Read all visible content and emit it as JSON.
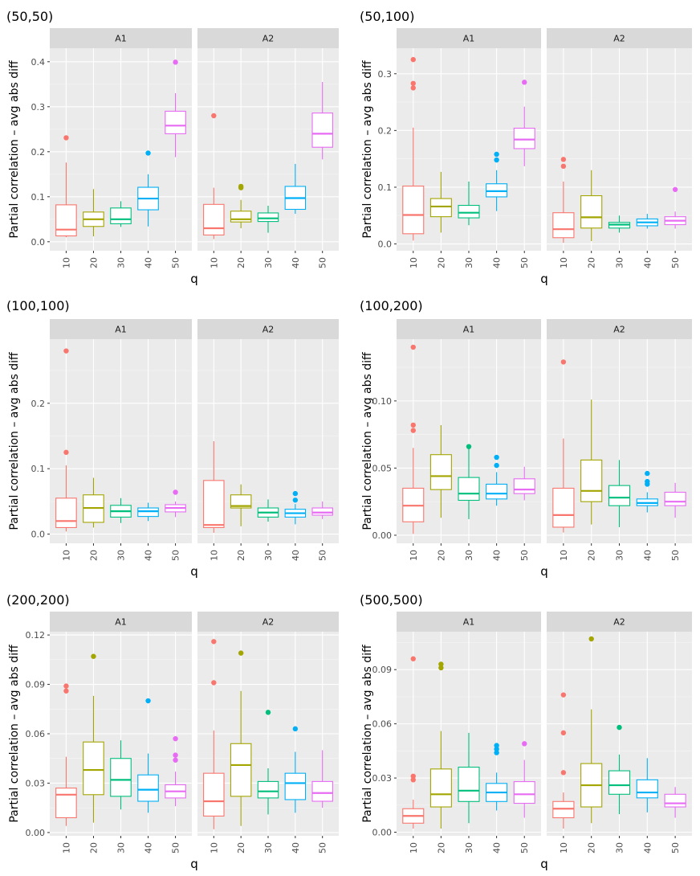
{
  "figure": {
    "ylabel": "Partial correlation – avg abs diff",
    "xlabel": "q",
    "strips": [
      "A1",
      "A2"
    ]
  },
  "colors": {
    "10": "#F8766D",
    "20": "#A3A500",
    "30": "#00BF7D",
    "40": "#00B0F6",
    "50": "#E76BF3"
  },
  "chart_data": [
    {
      "type": "boxplot",
      "title": "(50,50)",
      "xlabel": "q",
      "ylabel": "Partial correlation – avg abs diff",
      "categories": [
        "10",
        "20",
        "30",
        "40",
        "50"
      ],
      "ylim": [
        -0.02,
        0.43
      ],
      "yticks": [
        0.0,
        0.1,
        0.2,
        0.3,
        0.4
      ],
      "ytick_labels": [
        "0.0",
        "0.1",
        "0.2",
        "0.3",
        "0.4"
      ],
      "panels": [
        {
          "name": "A1",
          "boxes": [
            {
              "q": "10",
              "lw": 0.01,
              "q1": 0.013,
              "med": 0.027,
              "q3": 0.082,
              "uw": 0.176,
              "outliers": [
                0.231
              ]
            },
            {
              "q": "20",
              "lw": 0.012,
              "q1": 0.034,
              "med": 0.05,
              "q3": 0.066,
              "uw": 0.117,
              "outliers": []
            },
            {
              "q": "30",
              "lw": 0.033,
              "q1": 0.04,
              "med": 0.05,
              "q3": 0.075,
              "uw": 0.09,
              "outliers": []
            },
            {
              "q": "40",
              "lw": 0.034,
              "q1": 0.071,
              "med": 0.096,
              "q3": 0.121,
              "uw": 0.15,
              "outliers": [
                0.197
              ]
            },
            {
              "q": "50",
              "lw": 0.188,
              "q1": 0.24,
              "med": 0.258,
              "q3": 0.29,
              "uw": 0.33,
              "outliers": [
                0.399
              ]
            }
          ]
        },
        {
          "name": "A2",
          "boxes": [
            {
              "q": "10",
              "lw": 0.006,
              "q1": 0.015,
              "med": 0.03,
              "q3": 0.083,
              "uw": 0.12,
              "outliers": [
                0.28
              ]
            },
            {
              "q": "20",
              "lw": 0.03,
              "q1": 0.044,
              "med": 0.05,
              "q3": 0.068,
              "uw": 0.093,
              "outliers": [
                0.12,
                0.123
              ]
            },
            {
              "q": "30",
              "lw": 0.02,
              "q1": 0.045,
              "med": 0.052,
              "q3": 0.064,
              "uw": 0.08,
              "outliers": []
            },
            {
              "q": "40",
              "lw": 0.062,
              "q1": 0.072,
              "med": 0.097,
              "q3": 0.123,
              "uw": 0.173,
              "outliers": []
            },
            {
              "q": "50",
              "lw": 0.183,
              "q1": 0.21,
              "med": 0.24,
              "q3": 0.286,
              "uw": 0.355,
              "outliers": []
            }
          ]
        }
      ]
    },
    {
      "type": "boxplot",
      "title": "(50,100)",
      "xlabel": "q",
      "ylabel": "Partial correlation – avg abs diff",
      "categories": [
        "10",
        "20",
        "30",
        "40",
        "50"
      ],
      "ylim": [
        -0.012,
        0.345
      ],
      "yticks": [
        0.0,
        0.1,
        0.2,
        0.3
      ],
      "ytick_labels": [
        "0.0",
        "0.1",
        "0.2",
        "0.3"
      ],
      "panels": [
        {
          "name": "A1",
          "boxes": [
            {
              "q": "10",
              "lw": 0.006,
              "q1": 0.018,
              "med": 0.051,
              "q3": 0.102,
              "uw": 0.205,
              "outliers": [
                0.275,
                0.283,
                0.325
              ]
            },
            {
              "q": "20",
              "lw": 0.02,
              "q1": 0.048,
              "med": 0.066,
              "q3": 0.08,
              "uw": 0.127,
              "outliers": []
            },
            {
              "q": "30",
              "lw": 0.033,
              "q1": 0.046,
              "med": 0.055,
              "q3": 0.068,
              "uw": 0.11,
              "outliers": []
            },
            {
              "q": "40",
              "lw": 0.058,
              "q1": 0.083,
              "med": 0.093,
              "q3": 0.106,
              "uw": 0.13,
              "outliers": [
                0.148,
                0.158
              ]
            },
            {
              "q": "50",
              "lw": 0.137,
              "q1": 0.168,
              "med": 0.184,
              "q3": 0.204,
              "uw": 0.242,
              "outliers": [
                0.285
              ]
            }
          ]
        },
        {
          "name": "A2",
          "boxes": [
            {
              "q": "10",
              "lw": 0.002,
              "q1": 0.011,
              "med": 0.026,
              "q3": 0.055,
              "uw": 0.11,
              "outliers": [
                0.137,
                0.149
              ]
            },
            {
              "q": "20",
              "lw": 0.005,
              "q1": 0.028,
              "med": 0.047,
              "q3": 0.085,
              "uw": 0.13,
              "outliers": []
            },
            {
              "q": "30",
              "lw": 0.02,
              "q1": 0.028,
              "med": 0.034,
              "q3": 0.038,
              "uw": 0.05,
              "outliers": []
            },
            {
              "q": "40",
              "lw": 0.027,
              "q1": 0.032,
              "med": 0.038,
              "q3": 0.044,
              "uw": 0.053,
              "outliers": []
            },
            {
              "q": "50",
              "lw": 0.027,
              "q1": 0.034,
              "med": 0.041,
              "q3": 0.048,
              "uw": 0.057,
              "outliers": [
                0.096
              ]
            }
          ]
        }
      ]
    },
    {
      "type": "boxplot",
      "title": "(100,100)",
      "xlabel": "q",
      "ylabel": "Partial correlation – avg abs diff",
      "categories": [
        "10",
        "20",
        "30",
        "40",
        "50"
      ],
      "ylim": [
        -0.014,
        0.298
      ],
      "yticks": [
        0.0,
        0.1,
        0.2
      ],
      "ytick_labels": [
        "0.0",
        "0.1",
        "0.2"
      ],
      "panels": [
        {
          "name": "A1",
          "boxes": [
            {
              "q": "10",
              "lw": 0.004,
              "q1": 0.01,
              "med": 0.02,
              "q3": 0.055,
              "uw": 0.105,
              "outliers": [
                0.125,
                0.28
              ]
            },
            {
              "q": "20",
              "lw": 0.01,
              "q1": 0.018,
              "med": 0.04,
              "q3": 0.06,
              "uw": 0.086,
              "outliers": []
            },
            {
              "q": "30",
              "lw": 0.017,
              "q1": 0.026,
              "med": 0.035,
              "q3": 0.044,
              "uw": 0.055,
              "outliers": []
            },
            {
              "q": "40",
              "lw": 0.02,
              "q1": 0.027,
              "med": 0.035,
              "q3": 0.04,
              "uw": 0.048,
              "outliers": []
            },
            {
              "q": "50",
              "lw": 0.026,
              "q1": 0.034,
              "med": 0.04,
              "q3": 0.045,
              "uw": 0.05,
              "outliers": [
                0.064
              ]
            }
          ]
        },
        {
          "name": "A2",
          "boxes": [
            {
              "q": "10",
              "lw": 0.002,
              "q1": 0.01,
              "med": 0.014,
              "q3": 0.082,
              "uw": 0.142,
              "outliers": []
            },
            {
              "q": "20",
              "lw": 0.012,
              "q1": 0.04,
              "med": 0.043,
              "q3": 0.06,
              "uw": 0.076,
              "outliers": []
            },
            {
              "q": "30",
              "lw": 0.019,
              "q1": 0.026,
              "med": 0.033,
              "q3": 0.04,
              "uw": 0.053,
              "outliers": []
            },
            {
              "q": "40",
              "lw": 0.015,
              "q1": 0.026,
              "med": 0.032,
              "q3": 0.038,
              "uw": 0.046,
              "outliers": [
                0.052,
                0.062
              ]
            },
            {
              "q": "50",
              "lw": 0.023,
              "q1": 0.029,
              "med": 0.033,
              "q3": 0.04,
              "uw": 0.05,
              "outliers": []
            }
          ]
        }
      ]
    },
    {
      "type": "boxplot",
      "title": "(100,200)",
      "xlabel": "q",
      "ylabel": "Partial correlation – avg abs diff",
      "categories": [
        "10",
        "20",
        "30",
        "40",
        "50"
      ],
      "ylim": [
        -0.006,
        0.146
      ],
      "yticks": [
        0.0,
        0.05,
        0.1
      ],
      "ytick_labels": [
        "0.00",
        "0.05",
        "0.10"
      ],
      "panels": [
        {
          "name": "A1",
          "boxes": [
            {
              "q": "10",
              "lw": 0.001,
              "q1": 0.01,
              "med": 0.022,
              "q3": 0.035,
              "uw": 0.065,
              "outliers": [
                0.078,
                0.082,
                0.14
              ]
            },
            {
              "q": "20",
              "lw": 0.013,
              "q1": 0.034,
              "med": 0.044,
              "q3": 0.06,
              "uw": 0.082,
              "outliers": []
            },
            {
              "q": "30",
              "lw": 0.012,
              "q1": 0.026,
              "med": 0.031,
              "q3": 0.043,
              "uw": 0.066,
              "outliers": [
                0.066
              ]
            },
            {
              "q": "40",
              "lw": 0.022,
              "q1": 0.027,
              "med": 0.031,
              "q3": 0.038,
              "uw": 0.047,
              "outliers": [
                0.052,
                0.058
              ]
            },
            {
              "q": "50",
              "lw": 0.026,
              "q1": 0.031,
              "med": 0.034,
              "q3": 0.042,
              "uw": 0.051,
              "outliers": []
            }
          ]
        },
        {
          "name": "A2",
          "boxes": [
            {
              "q": "10",
              "lw": 0.002,
              "q1": 0.006,
              "med": 0.015,
              "q3": 0.035,
              "uw": 0.072,
              "outliers": [
                0.129
              ]
            },
            {
              "q": "20",
              "lw": 0.008,
              "q1": 0.025,
              "med": 0.033,
              "q3": 0.056,
              "uw": 0.101,
              "outliers": []
            },
            {
              "q": "30",
              "lw": 0.006,
              "q1": 0.022,
              "med": 0.028,
              "q3": 0.037,
              "uw": 0.056,
              "outliers": []
            },
            {
              "q": "40",
              "lw": 0.017,
              "q1": 0.022,
              "med": 0.024,
              "q3": 0.027,
              "uw": 0.032,
              "outliers": [
                0.038,
                0.04,
                0.046
              ]
            },
            {
              "q": "50",
              "lw": 0.013,
              "q1": 0.022,
              "med": 0.025,
              "q3": 0.032,
              "uw": 0.039,
              "outliers": []
            }
          ]
        }
      ]
    },
    {
      "type": "boxplot",
      "title": "(200,200)",
      "xlabel": "q",
      "ylabel": "Partial correlation – avg abs diff",
      "categories": [
        "10",
        "20",
        "30",
        "40",
        "50"
      ],
      "ylim": [
        -0.002,
        0.122
      ],
      "yticks": [
        0.0,
        0.03,
        0.06,
        0.09,
        0.12
      ],
      "ytick_labels": [
        "0.00",
        "0.03",
        "0.06",
        "0.09",
        "0.12"
      ],
      "panels": [
        {
          "name": "A1",
          "boxes": [
            {
              "q": "10",
              "lw": 0.004,
              "q1": 0.009,
              "med": 0.023,
              "q3": 0.027,
              "uw": 0.046,
              "outliers": [
                0.086,
                0.089
              ]
            },
            {
              "q": "20",
              "lw": 0.006,
              "q1": 0.023,
              "med": 0.038,
              "q3": 0.055,
              "uw": 0.083,
              "outliers": [
                0.107
              ]
            },
            {
              "q": "30",
              "lw": 0.014,
              "q1": 0.022,
              "med": 0.032,
              "q3": 0.045,
              "uw": 0.056,
              "outliers": []
            },
            {
              "q": "40",
              "lw": 0.012,
              "q1": 0.019,
              "med": 0.026,
              "q3": 0.035,
              "uw": 0.048,
              "outliers": [
                0.08
              ]
            },
            {
              "q": "50",
              "lw": 0.016,
              "q1": 0.021,
              "med": 0.025,
              "q3": 0.029,
              "uw": 0.037,
              "outliers": [
                0.044,
                0.047,
                0.057
              ]
            }
          ]
        },
        {
          "name": "A2",
          "boxes": [
            {
              "q": "10",
              "lw": 0.002,
              "q1": 0.01,
              "med": 0.019,
              "q3": 0.036,
              "uw": 0.062,
              "outliers": [
                0.091,
                0.116
              ]
            },
            {
              "q": "20",
              "lw": 0.004,
              "q1": 0.022,
              "med": 0.041,
              "q3": 0.054,
              "uw": 0.086,
              "outliers": [
                0.109
              ]
            },
            {
              "q": "30",
              "lw": 0.011,
              "q1": 0.021,
              "med": 0.025,
              "q3": 0.031,
              "uw": 0.039,
              "outliers": [
                0.073
              ]
            },
            {
              "q": "40",
              "lw": 0.012,
              "q1": 0.02,
              "med": 0.03,
              "q3": 0.036,
              "uw": 0.049,
              "outliers": [
                0.063
              ]
            },
            {
              "q": "50",
              "lw": 0.015,
              "q1": 0.019,
              "med": 0.024,
              "q3": 0.031,
              "uw": 0.05,
              "outliers": []
            }
          ]
        }
      ]
    },
    {
      "type": "boxplot",
      "title": "(500,500)",
      "xlabel": "q",
      "ylabel": "Partial correlation – avg abs diff",
      "categories": [
        "10",
        "20",
        "30",
        "40",
        "50"
      ],
      "ylim": [
        -0.002,
        0.111
      ],
      "yticks": [
        0.0,
        0.03,
        0.06,
        0.09
      ],
      "ytick_labels": [
        "0.00",
        "0.03",
        "0.06",
        "0.09"
      ],
      "panels": [
        {
          "name": "A1",
          "boxes": [
            {
              "q": "10",
              "lw": 0.002,
              "q1": 0.005,
              "med": 0.009,
              "q3": 0.013,
              "uw": 0.018,
              "outliers": [
                0.029,
                0.031,
                0.096
              ]
            },
            {
              "q": "20",
              "lw": 0.002,
              "q1": 0.014,
              "med": 0.021,
              "q3": 0.035,
              "uw": 0.056,
              "outliers": [
                0.091,
                0.093
              ]
            },
            {
              "q": "30",
              "lw": 0.005,
              "q1": 0.017,
              "med": 0.023,
              "q3": 0.036,
              "uw": 0.055,
              "outliers": []
            },
            {
              "q": "40",
              "lw": 0.012,
              "q1": 0.017,
              "med": 0.022,
              "q3": 0.027,
              "uw": 0.033,
              "outliers": [
                0.044,
                0.046,
                0.048
              ]
            },
            {
              "q": "50",
              "lw": 0.008,
              "q1": 0.016,
              "med": 0.021,
              "q3": 0.028,
              "uw": 0.04,
              "outliers": [
                0.049
              ]
            }
          ]
        },
        {
          "name": "A2",
          "boxes": [
            {
              "q": "10",
              "lw": 0.002,
              "q1": 0.008,
              "med": 0.013,
              "q3": 0.017,
              "uw": 0.022,
              "outliers": [
                0.033,
                0.055,
                0.076
              ]
            },
            {
              "q": "20",
              "lw": 0.005,
              "q1": 0.014,
              "med": 0.026,
              "q3": 0.038,
              "uw": 0.068,
              "outliers": [
                0.107
              ]
            },
            {
              "q": "30",
              "lw": 0.01,
              "q1": 0.021,
              "med": 0.026,
              "q3": 0.034,
              "uw": 0.043,
              "outliers": [
                0.058
              ]
            },
            {
              "q": "40",
              "lw": 0.011,
              "q1": 0.019,
              "med": 0.022,
              "q3": 0.029,
              "uw": 0.041,
              "outliers": []
            },
            {
              "q": "50",
              "lw": 0.008,
              "q1": 0.014,
              "med": 0.016,
              "q3": 0.021,
              "uw": 0.025,
              "outliers": []
            }
          ]
        }
      ]
    }
  ]
}
